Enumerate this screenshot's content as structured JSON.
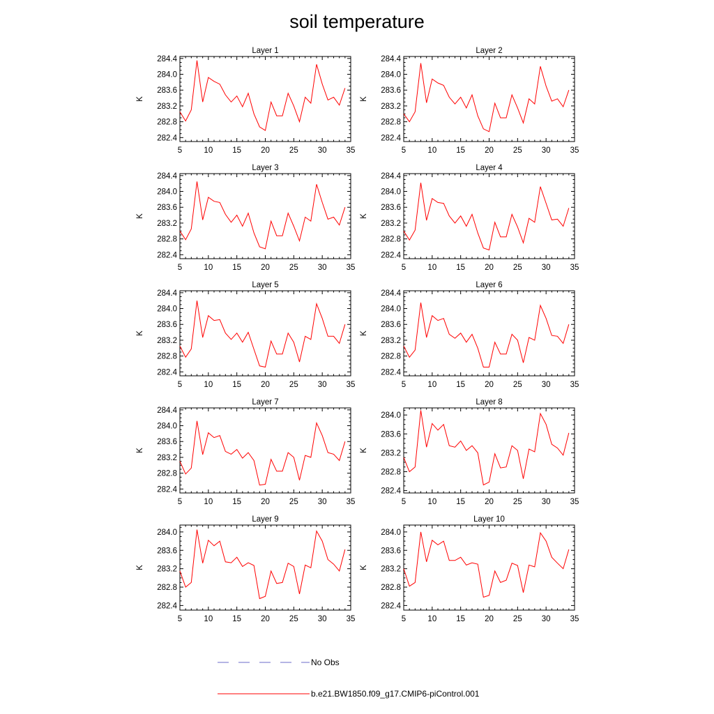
{
  "title": "soil temperature",
  "colors": {
    "model_line": "#ff0000",
    "obs_line": "#6b6bc8",
    "axis": "#000000"
  },
  "chart_data": {
    "type": "line",
    "x": [
      5,
      6,
      7,
      8,
      9,
      10,
      11,
      12,
      13,
      14,
      15,
      16,
      17,
      18,
      19,
      20,
      21,
      22,
      23,
      24,
      25,
      26,
      27,
      28,
      29,
      30,
      31,
      32,
      33,
      34
    ],
    "xlim": [
      5,
      35
    ],
    "xticks": [
      5,
      10,
      15,
      20,
      25,
      30,
      35
    ],
    "xtick_labels": [
      "5",
      "10",
      "15",
      "20",
      "25",
      "30",
      "35"
    ],
    "ylabel": "K",
    "panels": [
      {
        "title": "Layer 1",
        "ylim": [
          282.3,
          284.45
        ],
        "yticks": [
          282.4,
          282.8,
          283.2,
          283.6,
          284.0,
          284.4
        ],
        "ytick_labels": [
          "282.4",
          "282.8",
          "283.2",
          "283.6",
          "284.0",
          "284.4"
        ],
        "values": [
          283.05,
          282.82,
          283.1,
          284.35,
          283.3,
          283.92,
          283.82,
          283.75,
          283.48,
          283.3,
          283.45,
          283.18,
          283.52,
          283.0,
          282.67,
          282.58,
          283.3,
          282.95,
          282.95,
          283.52,
          283.2,
          282.8,
          283.42,
          283.27,
          284.25,
          283.75,
          283.35,
          283.42,
          283.22,
          283.65
        ]
      },
      {
        "title": "Layer 2",
        "ylim": [
          282.3,
          284.45
        ],
        "yticks": [
          282.4,
          282.8,
          283.2,
          283.6,
          284.0,
          284.4
        ],
        "ytick_labels": [
          "282.4",
          "282.8",
          "283.2",
          "283.6",
          "284.0",
          "284.4"
        ],
        "values": [
          283.0,
          282.8,
          283.05,
          284.28,
          283.28,
          283.88,
          283.78,
          283.72,
          283.42,
          283.25,
          283.42,
          283.15,
          283.48,
          282.95,
          282.62,
          282.55,
          283.27,
          282.9,
          282.9,
          283.48,
          283.15,
          282.77,
          283.38,
          283.25,
          284.2,
          283.7,
          283.32,
          283.38,
          283.18,
          283.6
        ]
      },
      {
        "title": "Layer 3",
        "ylim": [
          282.3,
          284.45
        ],
        "yticks": [
          282.4,
          282.8,
          283.2,
          283.6,
          284.0,
          284.4
        ],
        "ytick_labels": [
          "282.4",
          "282.8",
          "283.2",
          "283.6",
          "284.0",
          "284.4"
        ],
        "values": [
          283.0,
          282.78,
          283.05,
          284.25,
          283.28,
          283.85,
          283.75,
          283.72,
          283.42,
          283.22,
          283.4,
          283.12,
          283.45,
          282.95,
          282.6,
          282.55,
          283.25,
          282.88,
          282.88,
          283.45,
          283.12,
          282.75,
          283.35,
          283.25,
          284.18,
          283.72,
          283.3,
          283.35,
          283.15,
          283.6
        ]
      },
      {
        "title": "Layer 4",
        "ylim": [
          282.3,
          284.45
        ],
        "yticks": [
          282.4,
          282.8,
          283.2,
          283.6,
          284.0,
          284.4
        ],
        "ytick_labels": [
          "282.4",
          "282.8",
          "283.2",
          "283.6",
          "284.0",
          "284.4"
        ],
        "values": [
          283.0,
          282.77,
          283.02,
          284.22,
          283.27,
          283.82,
          283.72,
          283.7,
          283.38,
          283.2,
          283.38,
          283.12,
          283.42,
          282.95,
          282.57,
          282.52,
          283.22,
          282.85,
          282.85,
          283.42,
          283.1,
          282.7,
          283.32,
          283.22,
          284.12,
          283.7,
          283.28,
          283.3,
          283.12,
          283.58
        ]
      },
      {
        "title": "Layer 5",
        "ylim": [
          282.3,
          284.45
        ],
        "yticks": [
          282.4,
          282.8,
          283.2,
          283.6,
          284.0,
          284.4
        ],
        "ytick_labels": [
          "282.4",
          "282.8",
          "283.2",
          "283.6",
          "284.0",
          "284.4"
        ],
        "values": [
          283.05,
          282.77,
          282.98,
          284.2,
          283.27,
          283.82,
          283.7,
          283.72,
          283.38,
          283.22,
          283.38,
          283.15,
          283.4,
          282.97,
          282.55,
          282.52,
          283.18,
          282.85,
          282.85,
          283.38,
          283.15,
          282.65,
          283.3,
          283.22,
          284.12,
          283.75,
          283.3,
          283.3,
          283.12,
          283.6
        ]
      },
      {
        "title": "Layer 6",
        "ylim": [
          282.3,
          284.45
        ],
        "yticks": [
          282.4,
          282.8,
          283.2,
          283.6,
          284.0,
          284.4
        ],
        "ytick_labels": [
          "282.4",
          "282.8",
          "283.2",
          "283.6",
          "284.0",
          "284.4"
        ],
        "values": [
          283.05,
          282.77,
          282.95,
          284.15,
          283.27,
          283.82,
          283.7,
          283.75,
          283.35,
          283.25,
          283.38,
          283.15,
          283.35,
          283.0,
          282.52,
          282.52,
          283.15,
          282.85,
          282.85,
          283.35,
          283.2,
          282.63,
          283.27,
          283.2,
          284.08,
          283.75,
          283.32,
          283.3,
          283.12,
          283.6
        ]
      },
      {
        "title": "Layer 7",
        "ylim": [
          282.3,
          284.45
        ],
        "yticks": [
          282.4,
          282.8,
          283.2,
          283.6,
          284.0,
          284.4
        ],
        "ytick_labels": [
          "282.4",
          "282.8",
          "283.2",
          "283.6",
          "284.0",
          "284.4"
        ],
        "values": [
          283.1,
          282.78,
          282.93,
          284.12,
          283.27,
          283.82,
          283.7,
          283.75,
          283.35,
          283.28,
          283.4,
          283.18,
          283.32,
          283.12,
          282.5,
          282.52,
          283.15,
          282.85,
          282.85,
          283.32,
          283.2,
          282.62,
          283.25,
          283.2,
          284.07,
          283.75,
          283.32,
          283.28,
          283.12,
          283.6
        ]
      },
      {
        "title": "Layer 8",
        "ylim": [
          282.35,
          284.15
        ],
        "yticks": [
          282.4,
          282.8,
          283.2,
          283.6,
          284.0
        ],
        "ytick_labels": [
          "282.4",
          "282.8",
          "283.2",
          "283.6",
          "284.0"
        ],
        "values": [
          283.1,
          282.8,
          282.9,
          284.1,
          283.32,
          283.82,
          283.68,
          283.8,
          283.35,
          283.32,
          283.45,
          283.25,
          283.35,
          283.2,
          282.52,
          282.58,
          283.18,
          282.88,
          282.9,
          283.35,
          283.25,
          282.65,
          283.28,
          283.22,
          284.03,
          283.8,
          283.38,
          283.3,
          283.15,
          283.62
        ]
      },
      {
        "title": "Layer 9",
        "ylim": [
          282.3,
          284.15
        ],
        "yticks": [
          282.4,
          282.8,
          283.2,
          283.6,
          284.0
        ],
        "ytick_labels": [
          "282.4",
          "282.8",
          "283.2",
          "283.6",
          "284.0"
        ],
        "values": [
          283.15,
          282.8,
          282.9,
          284.05,
          283.32,
          283.82,
          283.7,
          283.8,
          283.35,
          283.33,
          283.45,
          283.25,
          283.33,
          283.27,
          282.55,
          282.6,
          283.15,
          282.88,
          282.9,
          283.32,
          283.25,
          282.65,
          283.28,
          283.22,
          284.02,
          283.8,
          283.4,
          283.3,
          283.15,
          283.62
        ]
      },
      {
        "title": "Layer 10",
        "ylim": [
          282.3,
          284.15
        ],
        "yticks": [
          282.4,
          282.8,
          283.2,
          283.6,
          284.0
        ],
        "ytick_labels": [
          "282.4",
          "282.8",
          "283.2",
          "283.6",
          "284.0"
        ],
        "values": [
          283.2,
          282.82,
          282.9,
          284.0,
          283.35,
          283.82,
          283.72,
          283.8,
          283.38,
          283.38,
          283.45,
          283.28,
          283.33,
          283.3,
          282.58,
          282.62,
          283.15,
          282.9,
          282.95,
          283.32,
          283.27,
          282.68,
          283.28,
          283.24,
          283.98,
          283.8,
          283.45,
          283.32,
          283.2,
          283.62
        ]
      }
    ],
    "legend": [
      {
        "label": "No Obs",
        "style": "dashed",
        "color": "#6b6bc8"
      },
      {
        "label": "b.e21.BW1850.f09_g17.CMIP6-piControl.001",
        "style": "solid",
        "color": "#ff0000"
      }
    ]
  }
}
